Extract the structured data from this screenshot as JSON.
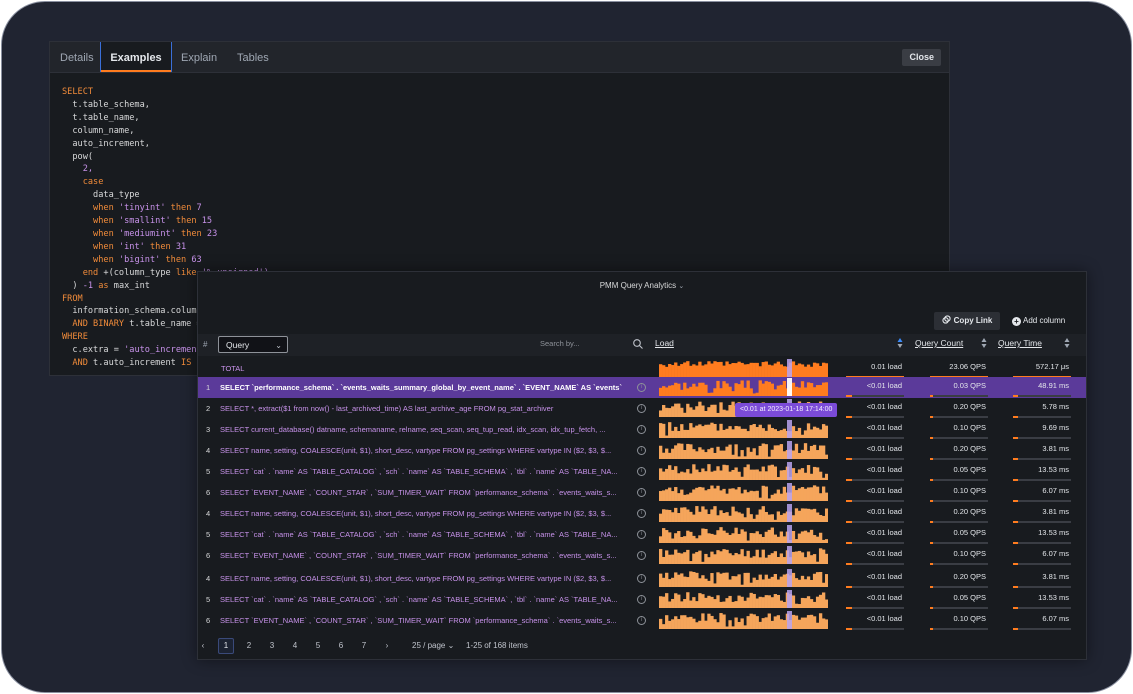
{
  "editor": {
    "tabs": [
      {
        "label": "Details"
      },
      {
        "label": "Examples",
        "active": true
      },
      {
        "label": "Explain"
      },
      {
        "label": "Tables"
      }
    ],
    "close_label": "Close",
    "code_lines": [
      [
        {
          "t": "SELECT",
          "c": "kw"
        }
      ],
      [
        {
          "t": "  t.table_schema,"
        }
      ],
      [
        {
          "t": "  t.table_name,"
        }
      ],
      [
        {
          "t": "  column_name,"
        }
      ],
      [
        {
          "t": "  auto_increment,"
        }
      ],
      [
        {
          "t": "  pow("
        }
      ],
      [
        {
          "t": "    2,",
          "c": "nu"
        }
      ],
      [
        {
          "t": "    case",
          "c": "kw"
        }
      ],
      [
        {
          "t": "      data_type"
        }
      ],
      [
        {
          "t": "      when ",
          "c": "kw"
        },
        {
          "t": "'tinyint'",
          "c": "st"
        },
        {
          "t": " then ",
          "c": "kw"
        },
        {
          "t": "7",
          "c": "nu"
        }
      ],
      [
        {
          "t": "      when ",
          "c": "kw"
        },
        {
          "t": "'smallint'",
          "c": "st"
        },
        {
          "t": " then ",
          "c": "kw"
        },
        {
          "t": "15",
          "c": "nu"
        }
      ],
      [
        {
          "t": "      when ",
          "c": "kw"
        },
        {
          "t": "'mediumint'",
          "c": "st"
        },
        {
          "t": " then ",
          "c": "kw"
        },
        {
          "t": "23",
          "c": "nu"
        }
      ],
      [
        {
          "t": "      when ",
          "c": "kw"
        },
        {
          "t": "'int'",
          "c": "st"
        },
        {
          "t": " then ",
          "c": "kw"
        },
        {
          "t": "31",
          "c": "nu"
        }
      ],
      [
        {
          "t": "      when ",
          "c": "kw"
        },
        {
          "t": "'bigint'",
          "c": "st"
        },
        {
          "t": " then ",
          "c": "kw"
        },
        {
          "t": "63",
          "c": "nu"
        }
      ],
      [
        {
          "t": "    end ",
          "c": "kw"
        },
        {
          "t": "+(column_type "
        },
        {
          "t": "like",
          "c": "kw"
        },
        {
          "t": " '% unsigned')",
          "c": "st"
        }
      ],
      [
        {
          "t": "  ) "
        },
        {
          "t": "-1",
          "c": "nu"
        },
        {
          "t": " as ",
          "c": "kw"
        },
        {
          "t": "max_int"
        }
      ],
      [
        {
          "t": "FROM",
          "c": "kw"
        }
      ],
      [
        {
          "t": "  information_schema.columns c"
        }
      ],
      [
        {
          "t": "  AND BINARY ",
          "c": "kw"
        },
        {
          "t": "t.table_name = c.table_name"
        }
      ],
      [
        {
          "t": "WHERE",
          "c": "kw"
        }
      ],
      [
        {
          "t": "  c.extra = "
        },
        {
          "t": "'auto_increment'",
          "c": "st"
        }
      ],
      [
        {
          "t": "  AND ",
          "c": "kw"
        },
        {
          "t": "t.auto_increment "
        },
        {
          "t": "IS NOT NULL",
          "c": "kw"
        }
      ]
    ]
  },
  "qan": {
    "title": "PMM Query Analytics",
    "copy_link": "Copy Link",
    "add_column": "Add column",
    "header": {
      "hash": "#",
      "query_select": "Query",
      "search_placeholder": "Search by...",
      "load": "Load",
      "query_count": "Query Count",
      "query_time": "Query Time"
    },
    "total": {
      "label": "TOTAL",
      "load": "0.01 load",
      "count": "23.06 QPS",
      "time": "572.17 μs"
    },
    "rows": [
      {
        "n": "1",
        "q": "SELECT `performance_schema` . `events_waits_summary_global_by_event_name` . `EVENT_NAME` AS `events`",
        "load": "<0.01 load",
        "count": "0.03 QPS",
        "time": "48.91 ms",
        "selected": true
      },
      {
        "n": "2",
        "q": "SELECT *, extract($1 from now() - last_archived_time) AS last_archive_age FROM pg_stat_archiver",
        "load": "<0.01 load",
        "count": "0.20 QPS",
        "time": "5.78 ms"
      },
      {
        "n": "3",
        "q": "SELECT current_database() datname, schemaname, relname, seq_scan, seq_tup_read, idx_scan, idx_tup_fetch, ...",
        "load": "<0.01 load",
        "count": "0.10 QPS",
        "time": "9.69 ms"
      },
      {
        "n": "4",
        "q": "SELECT name, setting, COALESCE(unit, $1), short_desc, vartype FROM pg_settings WHERE vartype IN ($2, $3, $...",
        "load": "<0.01 load",
        "count": "0.20 QPS",
        "time": "3.81 ms"
      },
      {
        "n": "5",
        "q": "SELECT `cat` . `name` AS `TABLE_CATALOG` , `sch` . `name` AS `TABLE_SCHEMA` , `tbl` . `name` AS `TABLE_NA...",
        "load": "<0.01 load",
        "count": "0.05 QPS",
        "time": "13.53 ms"
      },
      {
        "n": "6",
        "q": "SELECT `EVENT_NAME` , `COUNT_STAR` , `SUM_TIMER_WAIT` FROM `performance_schema` . `events_waits_s...",
        "load": "<0.01 load",
        "count": "0.10 QPS",
        "time": "6.07 ms"
      },
      {
        "n": "4",
        "q": "SELECT name, setting, COALESCE(unit, $1), short_desc, vartype FROM pg_settings WHERE vartype IN ($2, $3, $...",
        "load": "<0.01 load",
        "count": "0.20 QPS",
        "time": "3.81 ms"
      },
      {
        "n": "5",
        "q": "SELECT `cat` . `name` AS `TABLE_CATALOG` , `sch` . `name` AS `TABLE_SCHEMA` , `tbl` . `name` AS `TABLE_NA...",
        "load": "<0.01 load",
        "count": "0.05 QPS",
        "time": "13.53 ms"
      },
      {
        "n": "6",
        "q": "SELECT `EVENT_NAME` , `COUNT_STAR` , `SUM_TIMER_WAIT` FROM `performance_schema` . `events_waits_s...",
        "load": "<0.01 load",
        "count": "0.10 QPS",
        "time": "6.07 ms"
      },
      {
        "n": "4",
        "q": "SELECT name, setting, COALESCE(unit, $1), short_desc, vartype FROM pg_settings WHERE vartype IN ($2, $3, $...",
        "load": "<0.01 load",
        "count": "0.20 QPS",
        "time": "3.81 ms"
      },
      {
        "n": "5",
        "q": "SELECT `cat` . `name` AS `TABLE_CATALOG` , `sch` . `name` AS `TABLE_SCHEMA` , `tbl` . `name` AS `TABLE_NA...",
        "load": "<0.01 load",
        "count": "0.05 QPS",
        "time": "13.53 ms"
      },
      {
        "n": "6",
        "q": "SELECT `EVENT_NAME` , `COUNT_STAR` , `SUM_TIMER_WAIT` FROM `performance_schema` . `events_waits_s...",
        "load": "<0.01 load",
        "count": "0.10 QPS",
        "time": "6.07 ms"
      }
    ],
    "tooltip": "<0.01 at 2023-01-18 17:14:00",
    "pagination": {
      "prev": "‹",
      "next": "›",
      "pages": [
        "1",
        "2",
        "3",
        "4",
        "5",
        "6",
        "7"
      ],
      "active_page": "1",
      "page_size": "25 / page",
      "range": "1-25 of 168 items"
    }
  },
  "colors": {
    "accent_orange": "#ff7c1f",
    "sparkline": "#f5a55b",
    "selected_row": "#5b3a9a",
    "query_text": "#c792ea"
  },
  "icons": [
    "copy-link-icon",
    "plus-circle-icon",
    "search-icon",
    "info-icon",
    "sort-icon",
    "chevron-down-icon"
  ]
}
